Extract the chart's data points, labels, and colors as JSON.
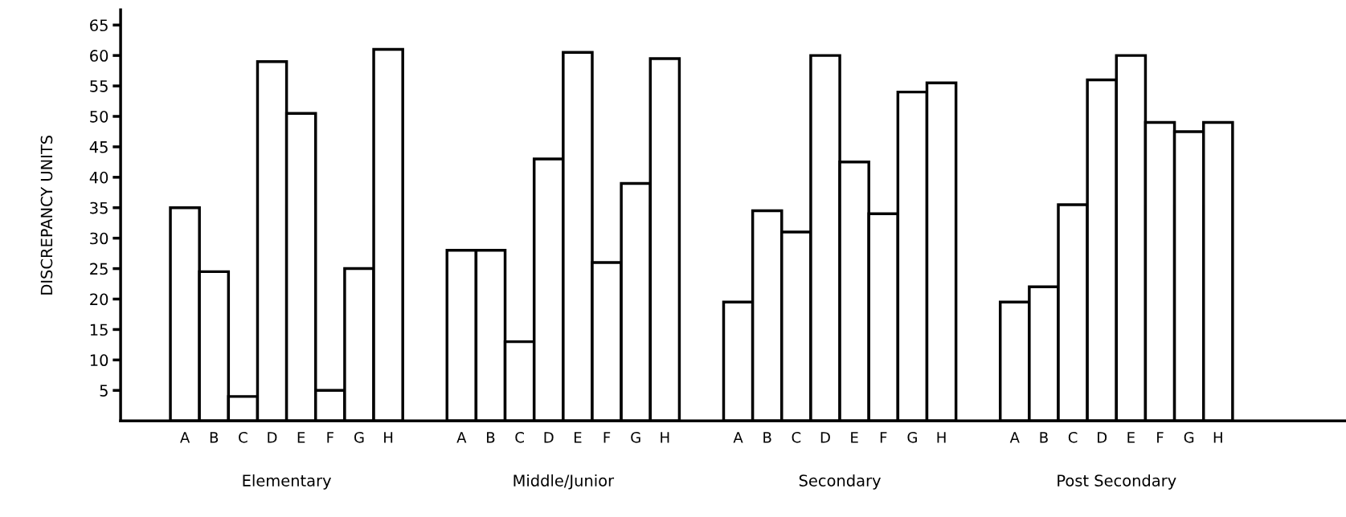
{
  "chart_data": {
    "type": "bar",
    "ylabel": "DISCREPANCY UNITS",
    "categories": [
      "Elementary",
      "Middle/Junior",
      "Secondary",
      "Post Secondary"
    ],
    "series": [
      {
        "name": "A",
        "color": "#ffffff",
        "values": [
          35,
          28,
          19.5,
          19.5
        ]
      },
      {
        "name": "B",
        "color": "#ffffff",
        "values": [
          24.5,
          28,
          34.5,
          22
        ]
      },
      {
        "name": "C",
        "color": "#ffffff",
        "values": [
          4,
          13,
          31,
          35.5
        ]
      },
      {
        "name": "D",
        "color": "#ffffff",
        "values": [
          59,
          43,
          60,
          56
        ]
      },
      {
        "name": "E",
        "color": "#ffffff",
        "values": [
          50.5,
          60.5,
          42.5,
          60
        ]
      },
      {
        "name": "F",
        "color": "#ffffff",
        "values": [
          5,
          26,
          34,
          49
        ]
      },
      {
        "name": "G",
        "color": "#ffffff",
        "values": [
          25,
          39,
          54,
          47.5
        ]
      },
      {
        "name": "H",
        "color": "#ffffff",
        "values": [
          61,
          59.5,
          55.5,
          49
        ]
      }
    ],
    "ylim": [
      0,
      67.5
    ],
    "yticks": [
      5,
      10,
      15,
      20,
      25,
      30,
      35,
      40,
      45,
      50,
      55,
      60,
      65
    ],
    "grid": false,
    "legend": false
  }
}
